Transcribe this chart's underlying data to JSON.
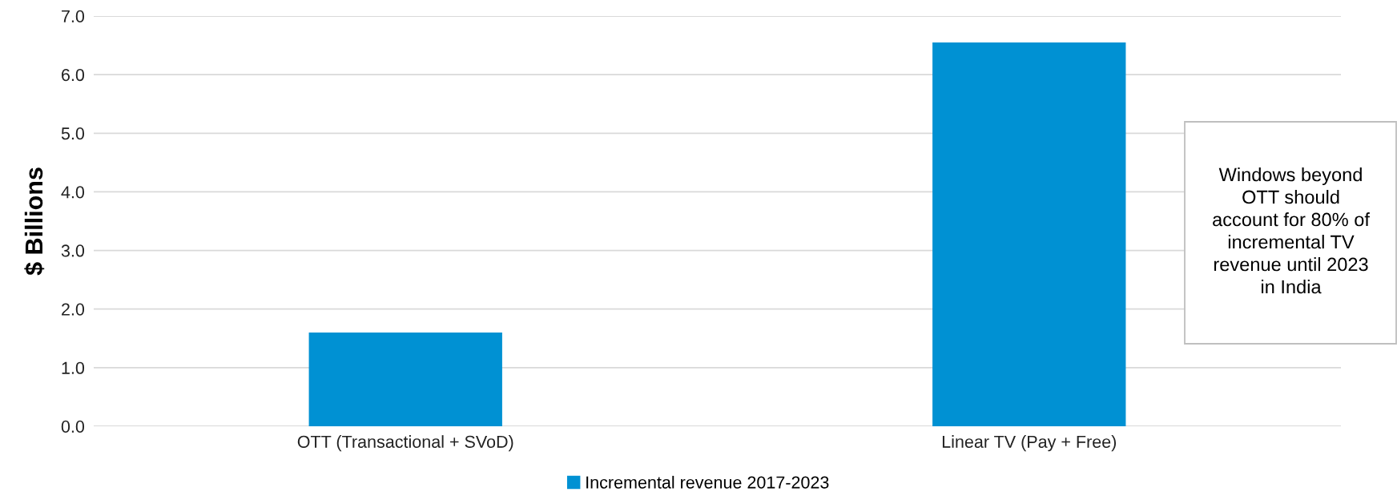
{
  "chart_data": {
    "type": "bar",
    "ylabel": "$ Billions",
    "categories": [
      "OTT (Transactional + SVoD)",
      "Linear TV (Pay + Free)"
    ],
    "series": [
      {
        "name": "Incremental revenue 2017-2023",
        "color": "#0091d3",
        "values": [
          1.6,
          6.55
        ]
      }
    ],
    "ylim": [
      0,
      7
    ],
    "yticks": [
      {
        "value": 0,
        "label": "0.0"
      },
      {
        "value": 1,
        "label": "1.0"
      },
      {
        "value": 2,
        "label": "2.0"
      },
      {
        "value": 3,
        "label": "3.0"
      },
      {
        "value": 4,
        "label": "4.0"
      },
      {
        "value": 5,
        "label": "5.0"
      },
      {
        "value": 6,
        "label": "6.0"
      },
      {
        "value": 7,
        "label": "7.0"
      }
    ],
    "grid": "y",
    "legend": "bottom",
    "annotations": [
      "Windows beyond\nOTT should\naccount for 80% of\nincremental TV\nrevenue until 2023\nin India"
    ]
  }
}
